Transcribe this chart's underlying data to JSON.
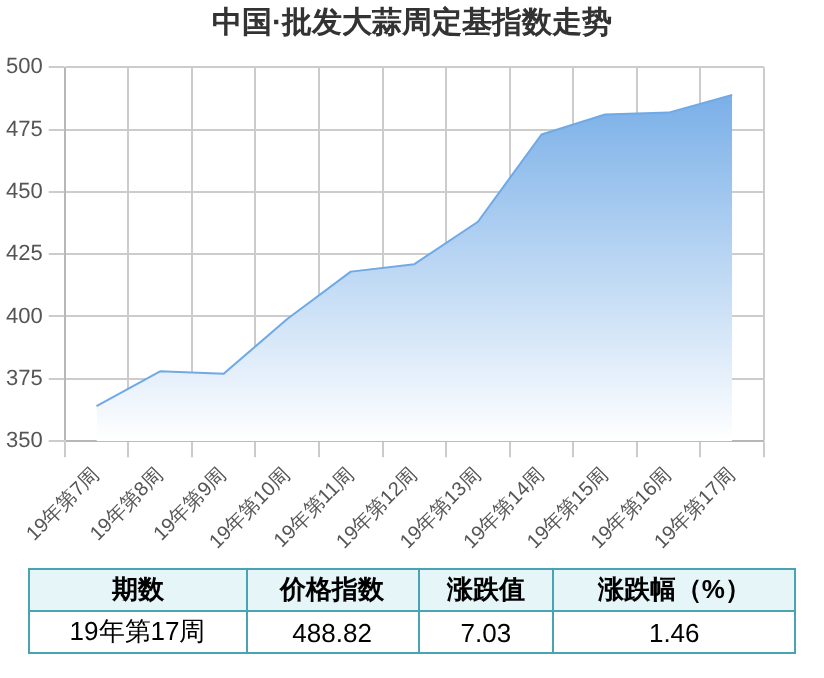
{
  "chart_data": {
    "type": "area",
    "title": "中国·批发大蒜周定基指数走势",
    "categories": [
      "19年第7周",
      "19年第8周",
      "19年第9周",
      "19年第10周",
      "19年第11周",
      "19年第12周",
      "19年第13周",
      "19年第14周",
      "19年第15周",
      "19年第16周",
      "19年第17周"
    ],
    "series": [
      {
        "color": "#6fa9e6",
        "values": [
          364,
          378,
          377,
          399,
          418,
          421,
          438,
          473,
          481,
          481.79,
          488.82
        ]
      }
    ],
    "ylim": [
      350,
      500
    ],
    "yticks": [
      350,
      375,
      400,
      425,
      450,
      475,
      500
    ],
    "grid": true,
    "legend": false,
    "annotations": [
      "期数",
      "价格指数",
      "涨跌值",
      "涨跌幅（%）",
      "19年第17周",
      "488.82",
      "7.03",
      "1.46"
    ]
  }
}
